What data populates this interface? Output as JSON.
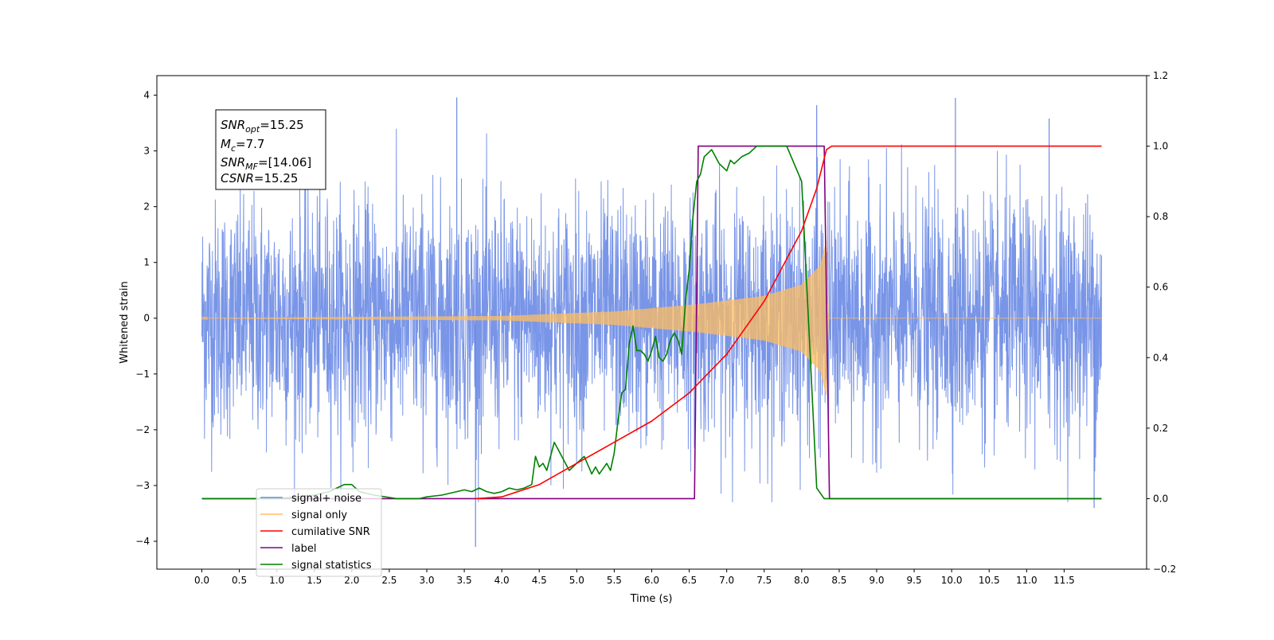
{
  "chart_data": {
    "type": "line",
    "title": "",
    "xlabel": "Time (s)",
    "ylabel": "Whitened strain",
    "xlim": [
      -0.6,
      12.6
    ],
    "ylim": [
      -4.5,
      4.35
    ],
    "y2lim": [
      -0.2,
      1.2
    ],
    "grid": false,
    "legend_position": "lower-left",
    "x_ticks": [
      "0.0",
      "0.5",
      "1.0",
      "1.5",
      "2.0",
      "2.5",
      "3.0",
      "3.5",
      "4.0",
      "4.5",
      "5.0",
      "5.5",
      "6.0",
      "6.5",
      "7.0",
      "7.5",
      "8.0",
      "8.5",
      "9.0",
      "9.5",
      "10.0",
      "10.5",
      "11.0",
      "11.5"
    ],
    "y_ticks": [
      "4",
      "3",
      "2",
      "1",
      "0",
      "−1",
      "−2",
      "−3",
      "−4"
    ],
    "y2_ticks": [
      "1.2",
      "1.0",
      "0.8",
      "0.6",
      "0.4",
      "0.2",
      "0.0",
      "−0.2"
    ],
    "annotation": {
      "snr_opt": {
        "prefix": "SNR",
        "sub": "opt",
        "value": "=15.25"
      },
      "mc": {
        "prefix": "M",
        "sub": "c",
        "value": "=7.7"
      },
      "snr_mf": {
        "prefix": "SNR",
        "sub": "MF",
        "value": "=[14.06]"
      },
      "csnr": {
        "prefix": "CSNR",
        "sub": "",
        "value": "=15.25"
      }
    },
    "series": [
      {
        "name": "signal+ noise",
        "color": "#6a89e4",
        "axis": "left",
        "x_range": [
          0,
          12
        ],
        "noise_envelope": [
          -2.4,
          2.4
        ],
        "peak_values": [
          3.96,
          -4.1,
          3.82,
          3.95,
          3.58,
          -3.4
        ]
      },
      {
        "name": "signal only",
        "color": "#ffbe60",
        "axis": "left",
        "chirp_x": [
          0,
          4.0,
          5.5,
          6.6,
          7.5,
          8.0,
          8.25,
          8.33,
          8.36
        ],
        "chirp_amp": [
          0.005,
          0.04,
          0.12,
          0.25,
          0.4,
          0.6,
          0.95,
          1.4,
          0.0
        ]
      },
      {
        "name": "cumilative SNR",
        "color": "#ff0000",
        "axis": "right",
        "x": [
          3.65,
          4.0,
          4.5,
          5.0,
          5.5,
          6.0,
          6.5,
          7.0,
          7.5,
          8.0,
          8.2,
          8.33,
          8.4,
          12.0
        ],
        "y": [
          0.0,
          0.005,
          0.04,
          0.1,
          0.16,
          0.22,
          0.3,
          0.41,
          0.56,
          0.76,
          0.88,
          0.99,
          1.0,
          1.0
        ]
      },
      {
        "name": "label",
        "color": "#800080",
        "axis": "right",
        "x": [
          0.0,
          6.57,
          6.62,
          8.3,
          8.37,
          12.0
        ],
        "y": [
          0.0,
          0.0,
          1.0,
          1.0,
          0.0,
          0.0
        ]
      },
      {
        "name": "signal statistics",
        "color": "#008000",
        "axis": "right",
        "x": [
          0.0,
          1.0,
          1.5,
          1.7,
          1.8,
          1.9,
          2.0,
          2.1,
          2.3,
          2.6,
          2.9,
          3.0,
          3.2,
          3.4,
          3.5,
          3.6,
          3.7,
          3.8,
          3.9,
          4.0,
          4.1,
          4.2,
          4.3,
          4.4,
          4.45,
          4.5,
          4.55,
          4.6,
          4.65,
          4.7,
          4.75,
          4.8,
          4.9,
          5.0,
          5.1,
          5.2,
          5.25,
          5.3,
          5.4,
          5.45,
          5.5,
          5.55,
          5.6,
          5.65,
          5.7,
          5.75,
          5.8,
          5.85,
          5.9,
          5.95,
          6.0,
          6.05,
          6.1,
          6.15,
          6.2,
          6.25,
          6.3,
          6.35,
          6.4,
          6.45,
          6.5,
          6.55,
          6.6,
          6.65,
          6.7,
          6.8,
          6.9,
          7.0,
          7.05,
          7.1,
          7.2,
          7.3,
          7.4,
          7.5,
          7.6,
          7.7,
          7.8,
          8.0,
          8.2,
          8.3,
          8.35,
          8.38,
          8.42,
          8.5,
          12.0
        ],
        "y": [
          0.0,
          0.0,
          0.01,
          0.02,
          0.03,
          0.04,
          0.04,
          0.02,
          0.01,
          0.0,
          0.0,
          0.005,
          0.01,
          0.02,
          0.025,
          0.02,
          0.03,
          0.02,
          0.015,
          0.02,
          0.03,
          0.025,
          0.03,
          0.04,
          0.12,
          0.09,
          0.1,
          0.08,
          0.12,
          0.16,
          0.14,
          0.12,
          0.08,
          0.1,
          0.12,
          0.07,
          0.09,
          0.07,
          0.1,
          0.08,
          0.13,
          0.22,
          0.3,
          0.31,
          0.44,
          0.49,
          0.42,
          0.42,
          0.41,
          0.39,
          0.42,
          0.46,
          0.4,
          0.39,
          0.41,
          0.45,
          0.47,
          0.45,
          0.41,
          0.56,
          0.65,
          0.8,
          0.9,
          0.92,
          0.97,
          0.99,
          0.95,
          0.93,
          0.96,
          0.95,
          0.97,
          0.98,
          1.0,
          1.0,
          1.0,
          1.0,
          1.0,
          0.9,
          0.03,
          0.0,
          0.0,
          0.0,
          0.0,
          0.0,
          0.0
        ]
      }
    ]
  }
}
